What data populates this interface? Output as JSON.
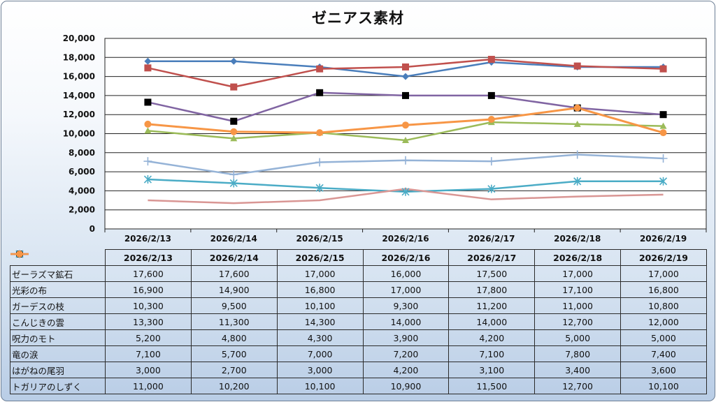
{
  "chart_data": {
    "type": "line",
    "title": "ゼニアス素材",
    "categories": [
      "2026/2/13",
      "2026/2/14",
      "2026/2/15",
      "2026/2/16",
      "2026/2/17",
      "2026/2/18",
      "2026/2/19"
    ],
    "ylim": [
      0,
      20000
    ],
    "yticks": [
      "20,000",
      "18,000",
      "16,000",
      "14,000",
      "12,000",
      "10,000",
      "8,000",
      "6,000",
      "4,000",
      "2,000",
      "0"
    ],
    "grid": true,
    "legend": "data-table",
    "series": [
      {
        "name": "ゼーラズマ鉱石",
        "color": "#4a7ebb",
        "marker": "diamond",
        "values": [
          17600,
          17600,
          17000,
          16000,
          17500,
          17000,
          17000
        ],
        "labels": [
          "17,600",
          "17,600",
          "17,000",
          "16,000",
          "17,500",
          "17,000",
          "17,000"
        ]
      },
      {
        "name": "光彩の布",
        "color": "#c0504d",
        "marker": "square",
        "values": [
          16900,
          14900,
          16800,
          17000,
          17800,
          17100,
          16800
        ],
        "labels": [
          "16,900",
          "14,900",
          "16,800",
          "17,000",
          "17,800",
          "17,100",
          "16,800"
        ]
      },
      {
        "name": "ガーデスの枝",
        "color": "#9bbb59",
        "marker": "triangle",
        "values": [
          10300,
          9500,
          10100,
          9300,
          11200,
          11000,
          10800
        ],
        "labels": [
          "10,300",
          "9,500",
          "10,100",
          "9,300",
          "11,200",
          "11,000",
          "10,800"
        ]
      },
      {
        "name": "こんじきの雲",
        "color": "#8064a2",
        "marker": "blacksquare",
        "values": [
          13300,
          11300,
          14300,
          14000,
          14000,
          12700,
          12000
        ],
        "labels": [
          "13,300",
          "11,300",
          "14,300",
          "14,000",
          "14,000",
          "12,700",
          "12,000"
        ]
      },
      {
        "name": "呪力のモト",
        "color": "#4bacc6",
        "marker": "star",
        "values": [
          5200,
          4800,
          4300,
          3900,
          4200,
          5000,
          5000
        ],
        "labels": [
          "5,200",
          "4,800",
          "4,300",
          "3,900",
          "4,200",
          "5,000",
          "5,000"
        ]
      },
      {
        "name": "竜の涙",
        "color": "#95b3d7",
        "marker": "plus",
        "values": [
          7100,
          5700,
          7000,
          7200,
          7100,
          7800,
          7400
        ],
        "labels": [
          "7,100",
          "5,700",
          "7,000",
          "7,200",
          "7,100",
          "7,800",
          "7,400"
        ]
      },
      {
        "name": "はがねの尾羽",
        "color": "#d99694",
        "marker": "none",
        "values": [
          3000,
          2700,
          3000,
          4200,
          3100,
          3400,
          3600
        ],
        "labels": [
          "3,000",
          "2,700",
          "3,000",
          "4,200",
          "3,100",
          "3,400",
          "3,600"
        ]
      },
      {
        "name": "トガリアのしずく",
        "color": "#f79646",
        "marker": "circle",
        "values": [
          11000,
          10200,
          10100,
          10900,
          11500,
          12700,
          10100
        ],
        "labels": [
          "11,000",
          "10,200",
          "10,100",
          "10,900",
          "11,500",
          "12,700",
          "10,100"
        ]
      }
    ]
  }
}
